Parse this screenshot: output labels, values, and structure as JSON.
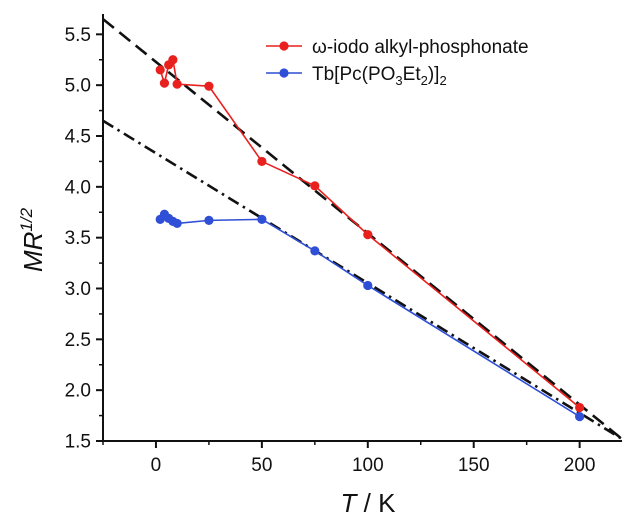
{
  "chart_data": {
    "type": "line",
    "xlabel_italic": "T",
    "xlabel_rest": " / K",
    "ylabel_italic": "MR",
    "ylabel_sup": "1/2",
    "xlim": [
      -25,
      220
    ],
    "ylim": [
      1.5,
      5.7
    ],
    "xticks": [
      0,
      50,
      100,
      150,
      200
    ],
    "yticks": [
      1.5,
      2.0,
      2.5,
      3.0,
      3.5,
      4.0,
      4.5,
      5.0,
      5.5
    ],
    "grid": false,
    "legend_position": "top-right",
    "series": [
      {
        "name": "ω-iodo alkyl-phosphonate",
        "color": "#e8201e",
        "x": [
          2,
          4,
          6,
          8,
          10,
          25,
          50,
          75,
          100,
          200
        ],
        "y": [
          5.15,
          5.02,
          5.2,
          5.25,
          5.01,
          4.99,
          4.25,
          4.01,
          3.53,
          1.83
        ]
      },
      {
        "name_main": "Tb[Pc(PO",
        "name_sub1": "3",
        "name_mid": "Et",
        "name_sub2": "2",
        "name_end": ")]",
        "name_sub3": "2",
        "color": "#2e4fd6",
        "x": [
          2,
          4,
          6,
          8,
          10,
          25,
          50,
          75,
          100,
          200
        ],
        "y": [
          3.68,
          3.73,
          3.69,
          3.66,
          3.64,
          3.67,
          3.68,
          3.37,
          3.03,
          1.74
        ]
      }
    ],
    "fit_lines": [
      {
        "style": "dashed",
        "x": [
          -25,
          220
        ],
        "y": [
          5.65,
          1.52
        ]
      },
      {
        "style": "dash-dot",
        "x": [
          -25,
          220
        ],
        "y": [
          4.65,
          1.52
        ]
      }
    ]
  }
}
